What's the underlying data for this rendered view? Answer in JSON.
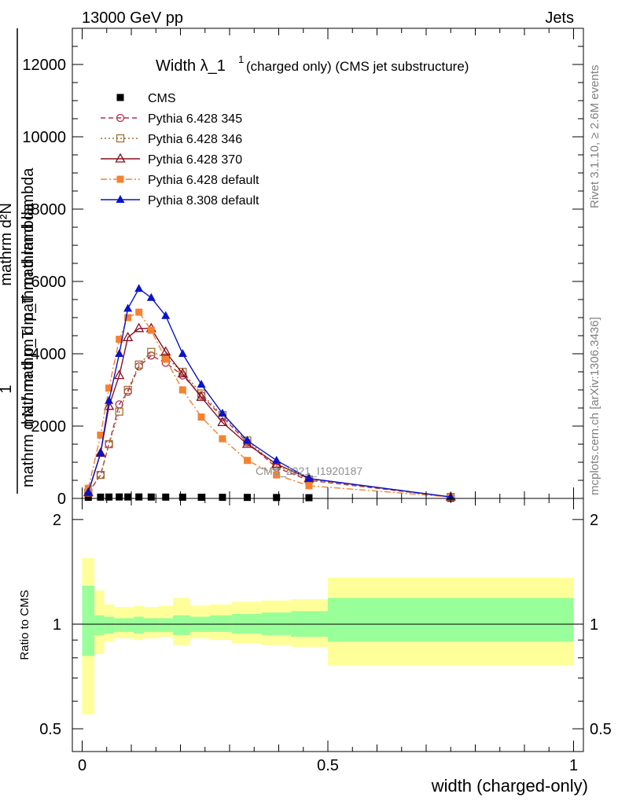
{
  "header": {
    "left": "13000 GeV pp",
    "right": "Jets"
  },
  "side": {
    "rivet": "Rivet 3.1.10, ≥ 2.6M events",
    "mcplots": "mcplots.cern.ch [arXiv:1306.3436]"
  },
  "watermark": "CMS_2021_I1920187",
  "main_title": {
    "prefix": "Width λ_1",
    "sup": "1",
    "suffix": "(charged only) (CMS jet substructure)"
  },
  "ylabel": {
    "numer": "1",
    "denom": "mathrm d N / mathrm d p_T mathrm d lambda",
    "numer2": "mathrm d²N",
    "denom2": "mathrm d p_T mathrm d lambda",
    "sub": "T"
  },
  "chart_data": [
    {
      "type": "line",
      "xlim": [
        -0.02,
        1.02
      ],
      "ylim": [
        0,
        13000
      ],
      "yticks": [
        0,
        2000,
        4000,
        6000,
        8000,
        10000,
        12000
      ],
      "ytick_labels": [
        "0",
        "2000",
        "4000",
        "6000",
        "8000",
        "10000",
        "12000"
      ],
      "legend_position": "top-left",
      "grid": false,
      "series": [
        {
          "name": "CMS",
          "color": "#000000",
          "marker": "filled-square",
          "line": "none",
          "x": [
            0.0125,
            0.0375,
            0.0545,
            0.0755,
            0.093,
            0.1155,
            0.1405,
            0.17,
            0.2045,
            0.2425,
            0.2855,
            0.336,
            0.3955,
            0.4615,
            0.75
          ],
          "y": [
            30,
            35,
            38,
            40,
            40,
            40,
            38,
            36,
            34,
            32,
            30,
            28,
            25,
            20,
            5
          ]
        },
        {
          "name": "Pythia 6.428 345",
          "color": "#b03050",
          "marker": "open-circle",
          "line": "dashed",
          "x": [
            0.0125,
            0.0375,
            0.0545,
            0.0755,
            0.093,
            0.1155,
            0.1405,
            0.17,
            0.2045,
            0.2425,
            0.2855,
            0.336,
            0.3955,
            0.4615,
            0.75
          ],
          "y": [
            150,
            650,
            1500,
            2600,
            2950,
            3650,
            3950,
            3750,
            3400,
            2850,
            2250,
            1550,
            850,
            500,
            40
          ]
        },
        {
          "name": "Pythia 6.428 346",
          "color": "#a07030",
          "marker": "open-square",
          "line": "dotted",
          "x": [
            0.0125,
            0.0375,
            0.0545,
            0.0755,
            0.093,
            0.1155,
            0.1405,
            0.17,
            0.2045,
            0.2425,
            0.2855,
            0.336,
            0.3955,
            0.4615,
            0.75
          ],
          "y": [
            160,
            650,
            1500,
            2400,
            3000,
            3700,
            4050,
            3900,
            3500,
            2900,
            2300,
            1600,
            900,
            520,
            40
          ]
        },
        {
          "name": "Pythia 6.428 370",
          "color": "#8b0d1e",
          "marker": "open-triangle",
          "line": "solid",
          "x": [
            0.0125,
            0.0375,
            0.0545,
            0.0755,
            0.093,
            0.1155,
            0.1405,
            0.17,
            0.2045,
            0.2425,
            0.2855,
            0.336,
            0.3955,
            0.4615,
            0.75
          ],
          "y": [
            160,
            1250,
            2550,
            3400,
            4450,
            4700,
            4700,
            4050,
            3450,
            2800,
            2100,
            1500,
            950,
            550,
            40
          ]
        },
        {
          "name": "Pythia 6.428 default",
          "color": "#f58231",
          "marker": "filled-square",
          "line": "dashdot",
          "x": [
            0.0125,
            0.0375,
            0.0545,
            0.0755,
            0.093,
            0.1155,
            0.1405,
            0.17,
            0.2045,
            0.2425,
            0.2855,
            0.336,
            0.3955,
            0.4615,
            0.75
          ],
          "y": [
            280,
            1750,
            3050,
            4400,
            5000,
            5150,
            4650,
            3850,
            3000,
            2250,
            1650,
            1050,
            650,
            350,
            40
          ]
        },
        {
          "name": "Pythia 8.308 default",
          "color": "#0a14c8",
          "marker": "filled-triangle",
          "line": "solid",
          "x": [
            0.0125,
            0.0375,
            0.0545,
            0.0755,
            0.093,
            0.1155,
            0.1405,
            0.17,
            0.2045,
            0.2425,
            0.2855,
            0.336,
            0.3955,
            0.4615,
            0.75
          ],
          "y": [
            180,
            1250,
            2700,
            4000,
            5250,
            5800,
            5550,
            5050,
            4000,
            3150,
            2350,
            1600,
            1050,
            550,
            40
          ]
        }
      ]
    },
    {
      "type": "area",
      "xlabel": "width (charged-only)",
      "ylabel": "Ratio to CMS",
      "xlim": [
        -0.02,
        1.02
      ],
      "ylim": [
        0.43,
        2.3
      ],
      "yticks": [
        0.5,
        1,
        2
      ],
      "ytick_labels": [
        "0.5",
        "1",
        "2"
      ],
      "xticks": [
        0,
        0.5,
        1
      ],
      "xtick_labels": [
        "0",
        "0.5",
        "1"
      ],
      "reference_line": 1,
      "bin_edges": [
        0,
        0.025,
        0.045,
        0.065,
        0.085,
        0.105,
        0.125,
        0.155,
        0.185,
        0.22,
        0.26,
        0.305,
        0.365,
        0.425,
        0.5,
        1.0
      ],
      "bands": [
        {
          "color": "#ffff99",
          "lo": [
            0.55,
            0.82,
            0.89,
            0.91,
            0.91,
            0.9,
            0.91,
            0.92,
            0.87,
            0.91,
            0.9,
            0.88,
            0.87,
            0.86,
            0.76
          ],
          "hi": [
            1.55,
            1.25,
            1.14,
            1.12,
            1.12,
            1.13,
            1.12,
            1.13,
            1.19,
            1.13,
            1.14,
            1.16,
            1.17,
            1.18,
            1.36
          ]
        },
        {
          "color": "#99ff99",
          "lo": [
            0.81,
            0.93,
            0.94,
            0.95,
            0.95,
            0.94,
            0.95,
            0.95,
            0.93,
            0.95,
            0.95,
            0.94,
            0.93,
            0.92,
            0.89
          ]
        }
      ],
      "green_hi": [
        1.29,
        1.06,
        1.05,
        1.04,
        1.04,
        1.05,
        1.04,
        1.04,
        1.06,
        1.05,
        1.06,
        1.07,
        1.08,
        1.09,
        1.19
      ]
    }
  ]
}
